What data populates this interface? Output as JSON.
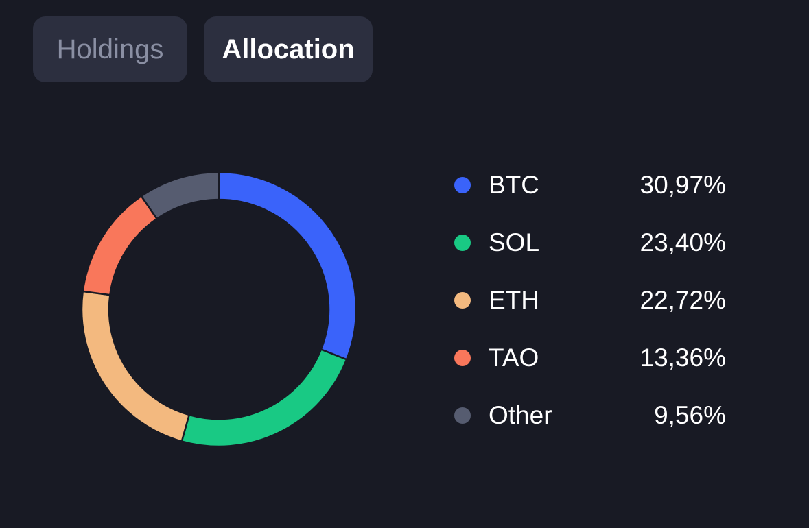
{
  "tabs": [
    {
      "label": "Holdings",
      "active": false
    },
    {
      "label": "Allocation",
      "active": true
    }
  ],
  "colors": {
    "background": "#181a24",
    "tab_bg": "#2c2f3f",
    "separator": "#181a24"
  },
  "chart_data": {
    "type": "pie",
    "style": "donut",
    "categories": [
      "BTC",
      "SOL",
      "ETH",
      "TAO",
      "Other"
    ],
    "values": [
      30.97,
      23.4,
      22.72,
      13.36,
      9.56
    ],
    "value_labels": [
      "30,97%",
      "23,40%",
      "22,72%",
      "13,36%",
      "9,56%"
    ],
    "colors": [
      "#3a63fa",
      "#19c984",
      "#f3b97f",
      "#f9775b",
      "#565c70"
    ],
    "legend_position": "right",
    "title": ""
  },
  "legend": [
    {
      "label": "BTC",
      "value": "30,97%",
      "color": "#3a63fa"
    },
    {
      "label": "SOL",
      "value": "23,40%",
      "color": "#19c984"
    },
    {
      "label": "ETH",
      "value": "22,72%",
      "color": "#f3b97f"
    },
    {
      "label": "TAO",
      "value": "13,36%",
      "color": "#f9775b"
    },
    {
      "label": "Other",
      "value": "9,56%",
      "color": "#565c70"
    }
  ]
}
